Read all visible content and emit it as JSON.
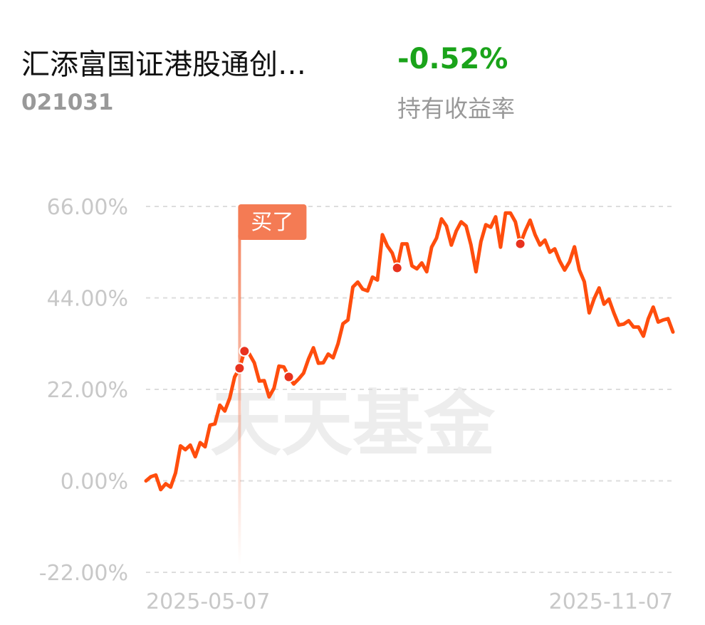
{
  "header": {
    "fund_name": "汇添富国证港股通创…",
    "fund_code": "021031",
    "return": "-0.52%",
    "return_label": "持有收益率"
  },
  "chart_data": {
    "type": "line",
    "watermark": "天天基金",
    "buy_tag": "买了",
    "categories": [
      "2025-05-07",
      null,
      null,
      null,
      null,
      null,
      null,
      null,
      null,
      null,
      null,
      null,
      null,
      null,
      null,
      null,
      null,
      null,
      null,
      null,
      null,
      null,
      null,
      null,
      null,
      null,
      null,
      null,
      null,
      null,
      null,
      null,
      null,
      null,
      null,
      null,
      null,
      null,
      null,
      null,
      null,
      null,
      null,
      null,
      null,
      null,
      null,
      null,
      null,
      null,
      null,
      null,
      null,
      null,
      null,
      null,
      null,
      null,
      null,
      null,
      null,
      null,
      null,
      null,
      null,
      null,
      null,
      null,
      null,
      null,
      null,
      null,
      null,
      null,
      null,
      null,
      null,
      null,
      null,
      null,
      null,
      null,
      null,
      null,
      null,
      null,
      null,
      null,
      null,
      null,
      null,
      null,
      null,
      null,
      null,
      null,
      null,
      null,
      null,
      null,
      null,
      null,
      null,
      null,
      null,
      null,
      null,
      "2025-11-07"
    ],
    "values": [
      0,
      1.0,
      1.4,
      -2.1,
      -0.7,
      -1.5,
      1.9,
      8.4,
      7.5,
      8.6,
      5.8,
      9.2,
      8.2,
      13.4,
      13.7,
      18.2,
      16.8,
      19.9,
      25.0,
      27.1,
      31.2,
      30.5,
      28.4,
      24.0,
      24.1,
      20.2,
      22.3,
      27.6,
      27.4,
      25.0,
      23.3,
      24.5,
      25.9,
      29.3,
      32.0,
      28.3,
      28.4,
      30.5,
      29.6,
      33.0,
      37.8,
      38.7,
      46.6,
      47.8,
      46.1,
      45.7,
      49.0,
      48.3,
      59.2,
      56.5,
      54.8,
      51.2,
      57.0,
      57.0,
      51.7,
      51.0,
      52.4,
      50.3,
      56.2,
      58.4,
      63.0,
      61.3,
      56.7,
      60.1,
      62.3,
      61.3,
      56.7,
      50.3,
      57.5,
      61.6,
      61.0,
      63.5,
      56.2,
      64.4,
      64.4,
      62.3,
      57.0,
      60.1,
      62.7,
      59.2,
      56.7,
      57.9,
      55.0,
      55.8,
      52.9,
      50.7,
      52.7,
      56.3,
      50.7,
      47.9,
      40.4,
      43.8,
      46.4,
      42.5,
      43.7,
      40.4,
      37.5,
      37.7,
      38.5,
      37.0,
      37.0,
      34.8,
      39.0,
      41.8,
      38.2,
      38.7,
      39.0,
      35.8
    ],
    "markers": [
      null,
      null,
      null,
      null,
      null,
      null,
      null,
      null,
      null,
      null,
      null,
      null,
      null,
      null,
      null,
      null,
      null,
      null,
      null,
      27.1,
      31.2,
      null,
      null,
      null,
      null,
      null,
      null,
      null,
      null,
      25.0,
      null,
      null,
      null,
      null,
      null,
      null,
      null,
      null,
      null,
      null,
      null,
      null,
      null,
      null,
      null,
      null,
      null,
      null,
      null,
      null,
      null,
      51.2,
      null,
      null,
      null,
      null,
      null,
      null,
      null,
      null,
      null,
      null,
      null,
      null,
      null,
      null,
      null,
      null,
      null,
      null,
      null,
      null,
      null,
      null,
      null,
      null,
      57.0,
      null,
      null,
      null,
      null,
      null,
      null,
      null,
      null,
      null,
      null,
      null,
      null,
      null,
      null,
      null,
      null,
      null,
      null,
      null,
      null,
      null,
      null,
      null,
      null,
      null,
      null,
      null,
      null,
      null,
      null,
      null
    ],
    "color": "#ff4d0d",
    "marker_color": "#e8321e",
    "ylim": [
      -22,
      66
    ],
    "yticks": [
      {
        "value": -22,
        "label": "-22.00%"
      },
      {
        "value": 0,
        "label": "0.00%"
      },
      {
        "value": 22,
        "label": "22.00%"
      },
      {
        "value": 44,
        "label": "44.00%"
      },
      {
        "value": 66,
        "label": "66.00%"
      }
    ],
    "grid": true
  }
}
